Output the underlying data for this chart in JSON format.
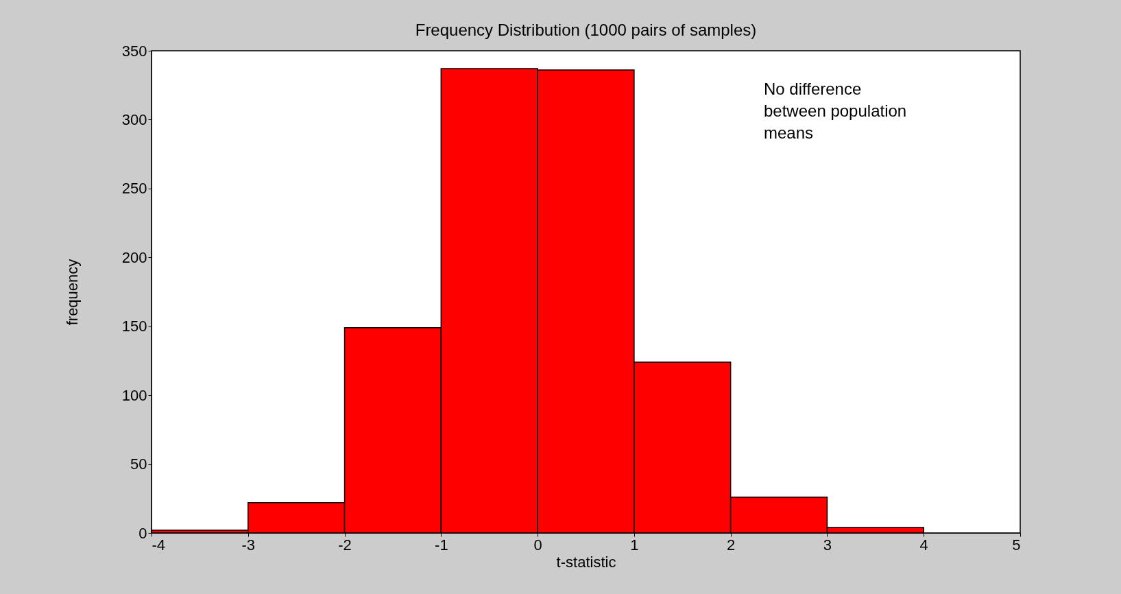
{
  "chart_data": {
    "type": "histogram",
    "title": "Frequency Distribution (1000 pairs of samples)",
    "xlabel": "t-statistic",
    "ylabel": "frequency",
    "bins": [
      -4,
      -3,
      -2,
      -1,
      0,
      1,
      2,
      3,
      4
    ],
    "values": [
      2,
      22,
      149,
      337,
      336,
      124,
      26,
      4
    ],
    "color": "#ff0000",
    "xlim": [
      -4,
      5
    ],
    "xticks": [
      -4,
      -3,
      -2,
      -1,
      0,
      1,
      2,
      3,
      4,
      5
    ],
    "ylim": [
      0,
      350
    ],
    "yticks": [
      0,
      50,
      100,
      150,
      200,
      250,
      300,
      350
    ],
    "annotations": [
      "No difference\nbetween population\nmeans"
    ],
    "grid": false
  }
}
